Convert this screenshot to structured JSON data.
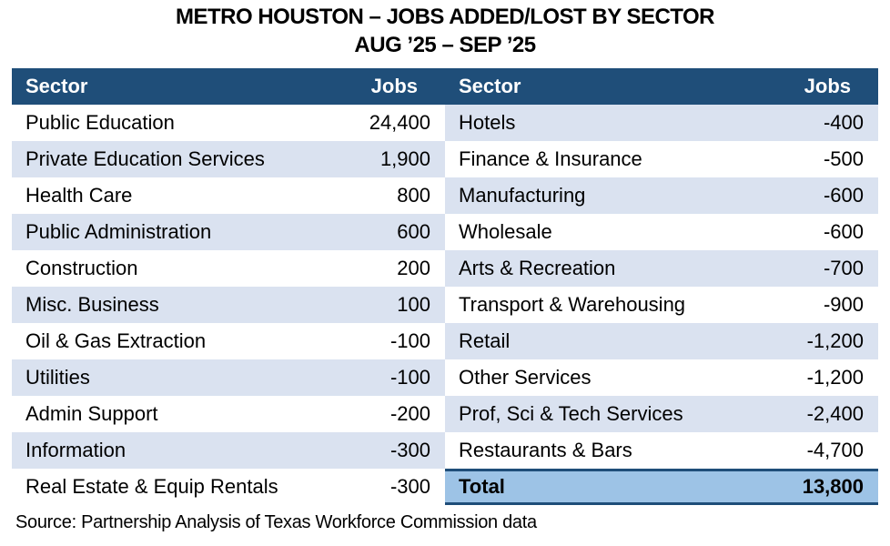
{
  "title": {
    "line1": "METRO HOUSTON – JOBS ADDED/LOST BY SECTOR",
    "line2": "AUG ’25 – SEP ’25"
  },
  "colors": {
    "header_bg": "#1F4E79",
    "header_text": "#FFFFFF",
    "stripe": "#DAE2F0",
    "total_bg": "#9DC3E6",
    "total_border": "#1F4E79"
  },
  "table": {
    "headers": [
      "Sector",
      "Jobs",
      "Sector",
      "Jobs"
    ],
    "left_rows": [
      {
        "sector": "Public Education",
        "jobs": "24,400"
      },
      {
        "sector": "Private Education Services",
        "jobs": "1,900"
      },
      {
        "sector": "Health Care",
        "jobs": "800"
      },
      {
        "sector": "Public Administration",
        "jobs": "600"
      },
      {
        "sector": "Construction",
        "jobs": "200"
      },
      {
        "sector": "Misc. Business",
        "jobs": "100"
      },
      {
        "sector": "Oil & Gas Extraction",
        "jobs": "-100"
      },
      {
        "sector": "Utilities",
        "jobs": "-100"
      },
      {
        "sector": "Admin Support",
        "jobs": "-200"
      },
      {
        "sector": "Information",
        "jobs": "-300"
      },
      {
        "sector": "Real Estate & Equip Rentals",
        "jobs": "-300"
      }
    ],
    "right_rows": [
      {
        "sector": "Hotels",
        "jobs": "-400"
      },
      {
        "sector": "Finance & Insurance",
        "jobs": "-500"
      },
      {
        "sector": "Manufacturing",
        "jobs": "-600"
      },
      {
        "sector": "Wholesale",
        "jobs": "-600"
      },
      {
        "sector": "Arts & Recreation",
        "jobs": "-700"
      },
      {
        "sector": "Transport & Warehousing",
        "jobs": "-900"
      },
      {
        "sector": "Retail",
        "jobs": "-1,200"
      },
      {
        "sector": "Other Services",
        "jobs": "-1,200"
      },
      {
        "sector": "Prof, Sci & Tech Services",
        "jobs": "-2,400"
      },
      {
        "sector": "Restaurants & Bars",
        "jobs": "-4,700"
      },
      {
        "sector": "Total",
        "jobs": "13,800",
        "is_total": true
      }
    ]
  },
  "source": "Source: Partnership Analysis of Texas Workforce Commission data",
  "chart_data": {
    "type": "table",
    "title": "METRO HOUSTON – JOBS ADDED/LOST BY SECTOR AUG ’25 – SEP ’25",
    "columns": [
      "Sector",
      "Jobs"
    ],
    "rows": [
      [
        "Public Education",
        24400
      ],
      [
        "Private Education Services",
        1900
      ],
      [
        "Health Care",
        800
      ],
      [
        "Public Administration",
        600
      ],
      [
        "Construction",
        200
      ],
      [
        "Misc. Business",
        100
      ],
      [
        "Oil & Gas Extraction",
        -100
      ],
      [
        "Utilities",
        -100
      ],
      [
        "Admin Support",
        -200
      ],
      [
        "Information",
        -300
      ],
      [
        "Real Estate & Equip Rentals",
        -300
      ],
      [
        "Hotels",
        -400
      ],
      [
        "Finance & Insurance",
        -500
      ],
      [
        "Manufacturing",
        -600
      ],
      [
        "Wholesale",
        -600
      ],
      [
        "Arts & Recreation",
        -700
      ],
      [
        "Transport & Warehousing",
        -900
      ],
      [
        "Retail",
        -1200
      ],
      [
        "Other Services",
        -1200
      ],
      [
        "Prof, Sci & Tech Services",
        -2400
      ],
      [
        "Restaurants & Bars",
        -4700
      ]
    ],
    "total": [
      "Total",
      13800
    ],
    "source": "Source: Partnership Analysis of Texas Workforce Commission data"
  }
}
